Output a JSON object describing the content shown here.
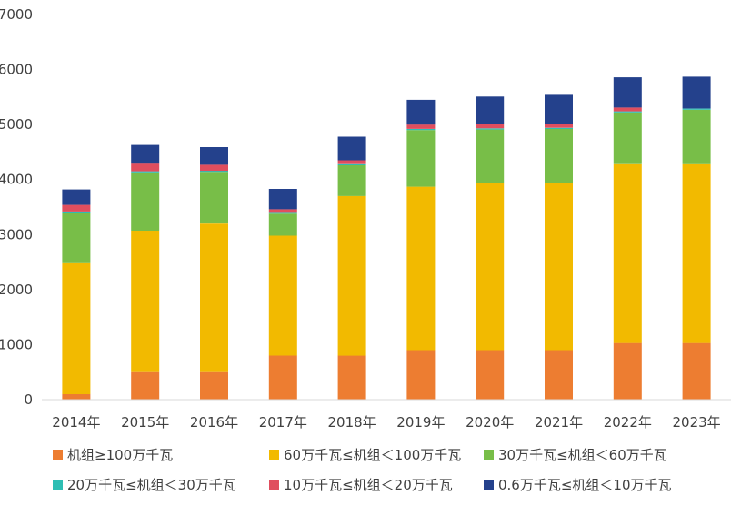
{
  "chart_data": {
    "type": "bar",
    "stacked": true,
    "categories": [
      "2014年",
      "2015年",
      "2016年",
      "2017年",
      "2018年",
      "2019年",
      "2020年",
      "2021年",
      "2022年",
      "2023年"
    ],
    "series": [
      {
        "name": "机组≥100万千瓦",
        "color": "#ED7D31",
        "values": [
          100,
          500,
          500,
          800,
          800,
          900,
          900,
          900,
          1030,
          1030
        ]
      },
      {
        "name": "60万千瓦≤机组＜100万千瓦",
        "color": "#F2BA00",
        "values": [
          2380,
          2570,
          2700,
          2180,
          2900,
          2970,
          3030,
          3030,
          3250,
          3250
        ]
      },
      {
        "name": "30万千瓦≤机组＜60万千瓦",
        "color": "#78BE48",
        "values": [
          920,
          1060,
          940,
          400,
          560,
          1030,
          980,
          990,
          940,
          990
        ]
      },
      {
        "name": "20万千瓦≤机组＜30万千瓦",
        "color": "#2EBEB4",
        "values": [
          20,
          20,
          20,
          30,
          20,
          20,
          20,
          20,
          20,
          20
        ]
      },
      {
        "name": "10万千瓦≤机组＜20万千瓦",
        "color": "#E04E5E",
        "values": [
          120,
          140,
          110,
          50,
          70,
          80,
          80,
          70,
          70,
          0
        ]
      },
      {
        "name": "0.6万千瓦≤机组＜10万千瓦",
        "color": "#24418C",
        "values": [
          280,
          340,
          320,
          370,
          430,
          450,
          500,
          530,
          550,
          580
        ]
      }
    ],
    "yticks": [
      0,
      1000,
      2000,
      3000,
      4000,
      5000,
      6000,
      7000
    ],
    "ylim": [
      0,
      7000
    ],
    "grid": false,
    "legend_position": "bottom"
  }
}
